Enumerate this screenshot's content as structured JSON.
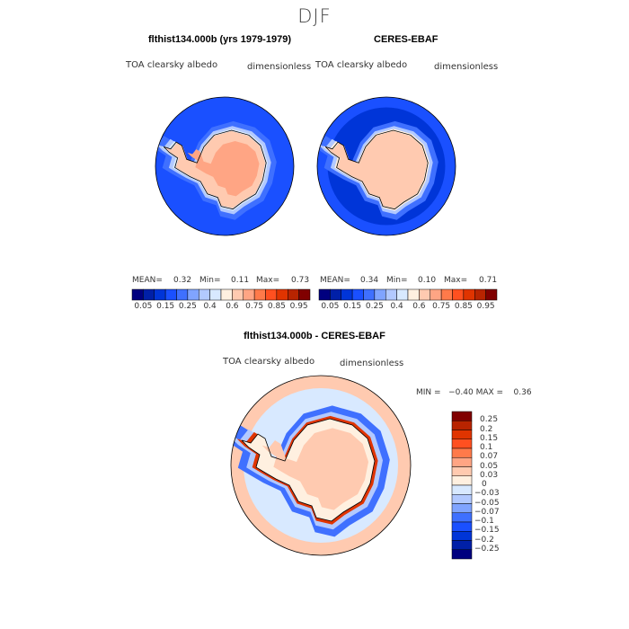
{
  "title": "DJF",
  "colors": {
    "abs_scale": [
      "#00007f",
      "#0020a8",
      "#0035d8",
      "#1a50ff",
      "#3f70ff",
      "#80a4ff",
      "#b2c9ff",
      "#d8e9ff",
      "#fff0e0",
      "#ffcab0",
      "#ffa584",
      "#ff7a4a",
      "#ff5020",
      "#e03400",
      "#b82400",
      "#800000"
    ],
    "diff_scale": [
      "#800000",
      "#b82400",
      "#e03400",
      "#ff5020",
      "#ff7a4a",
      "#ffa584",
      "#ffcab0",
      "#fff0e0",
      "#d8e9ff",
      "#b2c9ff",
      "#80a4ff",
      "#3f70ff",
      "#1a50ff",
      "#0035d8",
      "#0020a8",
      "#00007f"
    ]
  },
  "panels": [
    {
      "title": "flthist134.000b (yrs 1979-1979)",
      "variable": "TOA clearsky albedo",
      "units": "dimensionless",
      "mean_label": "MEAN=",
      "mean": "0.32",
      "min_label": "Min=",
      "min": "0.11",
      "max_label": "Max=",
      "max": "0.73"
    },
    {
      "title": "CERES-EBAF",
      "variable": "TOA clearsky albedo",
      "units": "dimensionless",
      "mean_label": "MEAN=",
      "mean": "0.34",
      "min_label": "Min=",
      "min": "0.10",
      "max_label": "Max=",
      "max": "0.71"
    }
  ],
  "diff_panel": {
    "title": "flthist134.000b - CERES-EBAF",
    "variable": "TOA clearsky albedo",
    "units": "dimensionless",
    "minmax": "MIN =   −0.40 MAX =    0.36"
  },
  "chart_data": [
    {
      "type": "heatmap",
      "title": "flthist134.000b (yrs 1979-1979)",
      "projection": "south polar stereographic",
      "levels": [
        0.05,
        0.1,
        0.15,
        0.2,
        0.25,
        0.3,
        0.4,
        0.5,
        0.6,
        0.7,
        0.75,
        0.8,
        0.85,
        0.9,
        0.95
      ],
      "tick_labels": [
        "0.05",
        "0.15",
        "0.25",
        "0.4",
        "0.6",
        "0.75",
        "0.85",
        "0.95"
      ],
      "mean": 0.32,
      "min": 0.11,
      "max": 0.73
    },
    {
      "type": "heatmap",
      "title": "CERES-EBAF",
      "projection": "south polar stereographic",
      "levels": [
        0.05,
        0.1,
        0.15,
        0.2,
        0.25,
        0.3,
        0.4,
        0.5,
        0.6,
        0.7,
        0.75,
        0.8,
        0.85,
        0.9,
        0.95
      ],
      "tick_labels": [
        "0.05",
        "0.15",
        "0.25",
        "0.4",
        "0.6",
        "0.75",
        "0.85",
        "0.95"
      ],
      "mean": 0.34,
      "min": 0.1,
      "max": 0.71
    },
    {
      "type": "heatmap",
      "title": "flthist134.000b - CERES-EBAF",
      "projection": "south polar stereographic",
      "levels": [
        0.25,
        0.2,
        0.15,
        0.1,
        0.07,
        0.05,
        0.03,
        0,
        -0.03,
        -0.05,
        -0.07,
        -0.1,
        -0.15,
        -0.2,
        -0.25
      ],
      "tick_labels": [
        "0.25",
        "0.2",
        "0.15",
        "0.1",
        "0.07",
        "0.05",
        "0.03",
        "0",
        "−0.03",
        "−0.05",
        "−0.07",
        "−0.1",
        "−0.15",
        "−0.2",
        "−0.25"
      ],
      "min": -0.4,
      "max": 0.36
    }
  ]
}
